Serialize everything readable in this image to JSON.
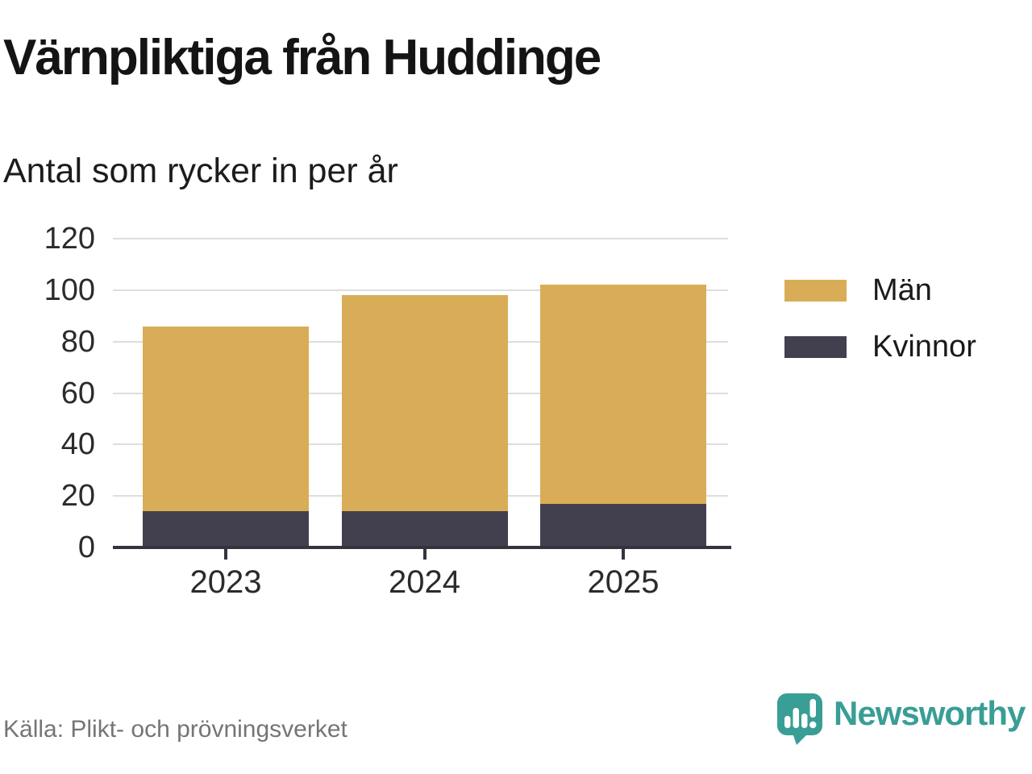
{
  "title": "Värnpliktiga från Huddinge",
  "subtitle": "Antal som rycker in per år",
  "source": "Källa: Plikt- och prövningsverket",
  "brand": {
    "name": "Newsworthy",
    "color": "#399e95",
    "icon": "newsworthy-speech-bubble-bar-chart-icon"
  },
  "colors": {
    "men": "#d9ad57",
    "women": "#42404e",
    "gridline": "#dedede",
    "axis": "#35333d",
    "text_dark": "#141414",
    "text_gray": "#757575"
  },
  "legend": {
    "items": [
      {
        "label": "Män",
        "color": "#d9ad57"
      },
      {
        "label": "Kvinnor",
        "color": "#42404e"
      }
    ]
  },
  "chart_data": {
    "type": "bar",
    "stacked": true,
    "title": "Värnpliktiga från Huddinge",
    "subtitle": "Antal som rycker in per år",
    "categories": [
      "2023",
      "2024",
      "2025"
    ],
    "series": [
      {
        "name": "Kvinnor",
        "color": "#42404e",
        "values": [
          14,
          14,
          17
        ]
      },
      {
        "name": "Män",
        "color": "#d9ad57",
        "values": [
          72,
          84,
          85
        ]
      }
    ],
    "totals": [
      86,
      98,
      102
    ],
    "xlabel": "",
    "ylabel": "",
    "ylim": [
      0,
      120
    ],
    "yticks": [
      0,
      20,
      40,
      60,
      80,
      100,
      120
    ],
    "grid": true,
    "legend_position": "right"
  }
}
